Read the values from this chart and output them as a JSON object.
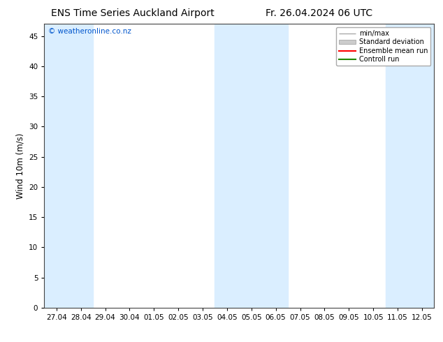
{
  "title_left": "ENS Time Series Auckland Airport",
  "title_right": "Fr. 26.04.2024 06 UTC",
  "ylabel": "Wind 10m (m/s)",
  "watermark": "© weatheronline.co.nz",
  "watermark_color": "#0055cc",
  "ylim": [
    0,
    47
  ],
  "yticks": [
    0,
    5,
    10,
    15,
    20,
    25,
    30,
    35,
    40,
    45
  ],
  "xtick_labels": [
    "27.04",
    "28.04",
    "29.04",
    "30.04",
    "01.05",
    "02.05",
    "03.05",
    "04.05",
    "05.05",
    "06.05",
    "07.05",
    "08.05",
    "09.05",
    "10.05",
    "11.05",
    "12.05"
  ],
  "shaded_color": "#daeeff",
  "bg_color": "#ffffff",
  "plot_bg_color": "#ffffff",
  "shaded_indices": [
    0,
    1,
    7,
    8,
    9,
    14,
    15
  ],
  "title_fontsize": 10,
  "tick_fontsize": 7.5,
  "ylabel_fontsize": 8.5,
  "watermark_fontsize": 7.5
}
